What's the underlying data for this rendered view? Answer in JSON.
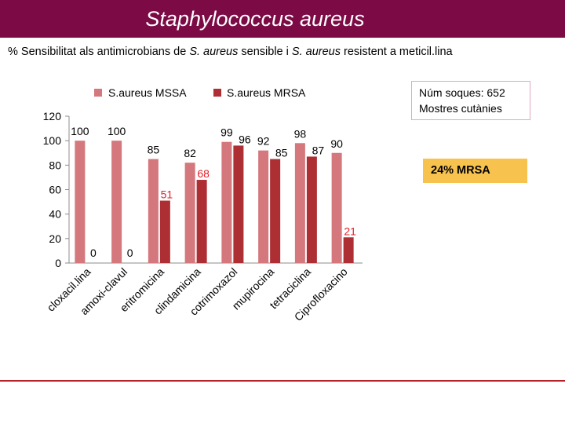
{
  "header": {
    "title": "Staphylococcus aureus",
    "subtitle_prefix": "% Sensibilitat als antimicrobians de ",
    "subtitle_species_1": "S. aureus",
    "subtitle_mid": " sensible  i ",
    "subtitle_species_2": "S. aureus",
    "subtitle_suffix": " resistent a meticil.lina"
  },
  "info_box": {
    "line1": "Núm soques: 652",
    "line2": "Mostres cutànies"
  },
  "mrsa_box": {
    "label": "24% MRSA"
  },
  "colors": {
    "title_bar": "#7b0a45",
    "mssa": "#d4787d",
    "mrsa": "#ad2f34",
    "mrsa_highlight_label": "#e0202a",
    "mrsa_box": "#f7c24e",
    "bottom_line": "#b8202a"
  },
  "chart_data": {
    "type": "bar",
    "title": "",
    "xlabel": "",
    "ylabel": "",
    "ylim": [
      0,
      120
    ],
    "yticks": [
      0,
      20,
      40,
      60,
      80,
      100,
      120
    ],
    "legend_position": "top",
    "categories": [
      "cloxacil.lina",
      "amoxi-clavul",
      "eritromicina",
      "clindamicina",
      "cotrimoxazol",
      "mupirocina",
      "tetraciclina",
      "Ciprofloxacino"
    ],
    "series": [
      {
        "name": "S.aureus MSSA",
        "values": [
          100,
          100,
          85,
          82,
          99,
          92,
          98,
          90
        ]
      },
      {
        "name": "S.aureus MRSA",
        "values": [
          0,
          0,
          51,
          68,
          96,
          85,
          87,
          21
        ]
      }
    ],
    "highlighted_mrsa_labels": [
      "eritromicina",
      "clindamicina",
      "Ciprofloxacino"
    ]
  }
}
